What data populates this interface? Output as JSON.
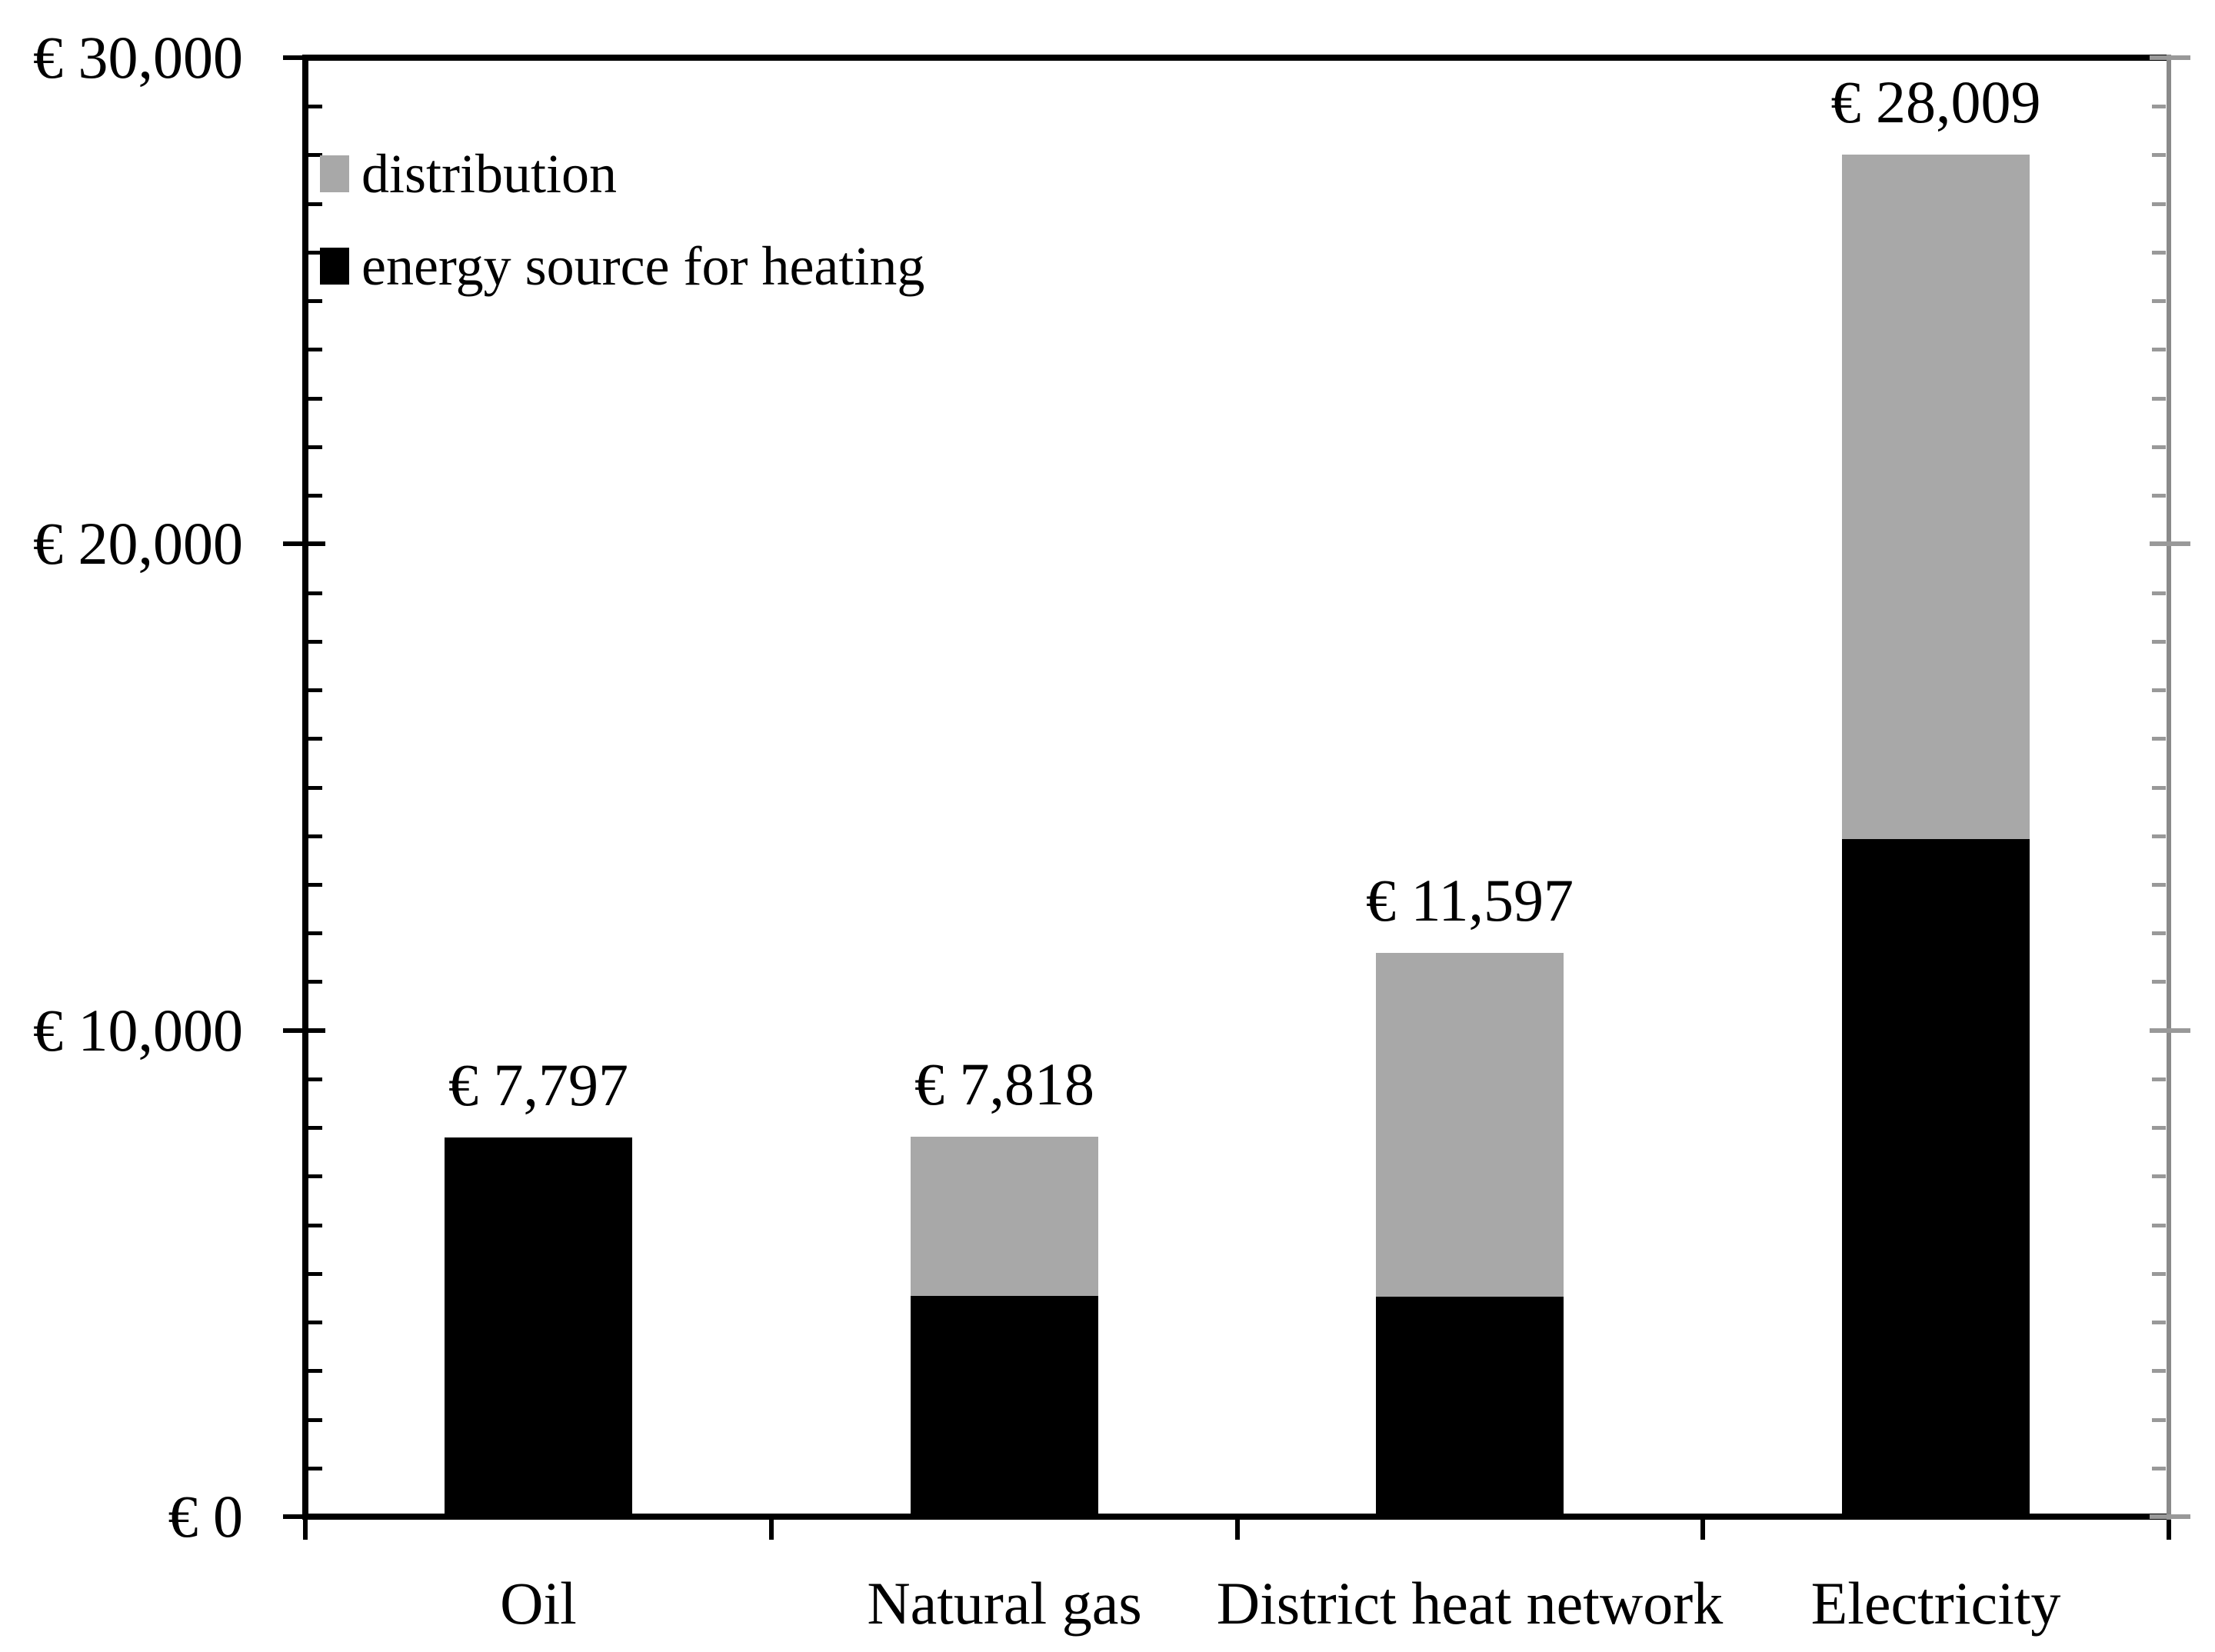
{
  "chart_data": {
    "type": "bar",
    "stacked": true,
    "title": "",
    "xlabel": "",
    "ylabel": "",
    "grid": false,
    "legend_position": "top-left-inside",
    "categories": [
      "Oil",
      "Natural gas",
      "District heat network",
      "Electricity"
    ],
    "series": [
      {
        "name": "energy source for heating",
        "color": "#000000",
        "values": [
          7797,
          4540,
          4525,
          13935
        ]
      },
      {
        "name": "distribution",
        "color": "#A8A8A8",
        "values": [
          0,
          3278,
          7072,
          14074
        ]
      }
    ],
    "totals": [
      7797,
      7818,
      11597,
      28009
    ],
    "total_labels": [
      "€ 7,797",
      "€ 7,818",
      "€ 11,597",
      "€ 28,009"
    ],
    "legend": [
      {
        "label": "distribution",
        "color": "#A8A8A8"
      },
      {
        "label": "energy source for heating",
        "color": "#000000"
      }
    ],
    "y_axis": {
      "currency": "EUR",
      "tick_labels": [
        "€ 0",
        "€ 10,000",
        "€ 20,000",
        "€ 30,000"
      ],
      "tick_values": [
        0,
        10000,
        20000,
        30000
      ],
      "min": 0,
      "max": 30000,
      "minor_step": 1000,
      "axis_color": "#000000",
      "right_border_color": "#8A8A8A",
      "right_tick_color": "#999999"
    }
  }
}
